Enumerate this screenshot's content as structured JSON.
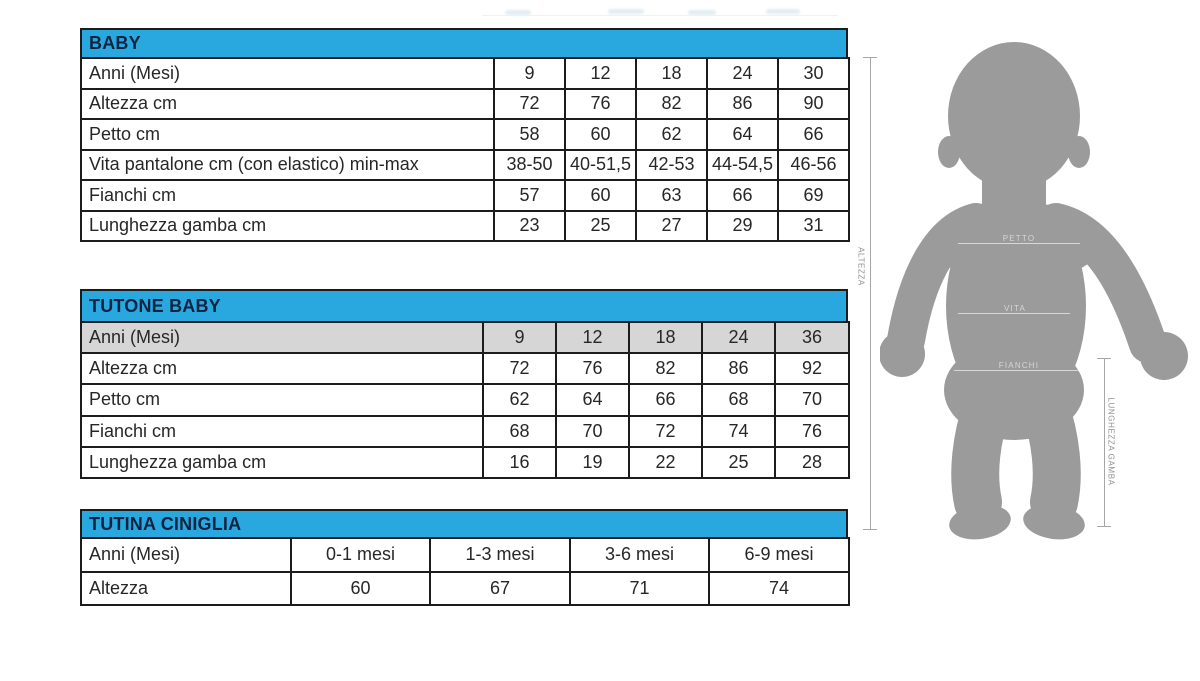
{
  "colors": {
    "header_bg": "#29a8e0",
    "header_text": "#102441",
    "grid_border": "#1c1c1c",
    "shaded_row": "#d6d6d6",
    "cell_text": "#272727",
    "silhouette_gray": "#9b9b9b",
    "dimension_gray": "#a6a6a6"
  },
  "tables": [
    {
      "title": "BABY",
      "rows": [
        {
          "label": "Anni (Mesi)",
          "values": [
            "9",
            "12",
            "18",
            "24",
            "30"
          ]
        },
        {
          "label": "Altezza cm",
          "values": [
            "72",
            "76",
            "82",
            "86",
            "90"
          ]
        },
        {
          "label": "Petto cm",
          "values": [
            "58",
            "60",
            "62",
            "64",
            "66"
          ]
        },
        {
          "label": "Vita pantalone cm (con elastico) min-max",
          "values": [
            "38-50",
            "40-51,5",
            "42-53",
            "44-54,5",
            "46-56"
          ]
        },
        {
          "label": "Fianchi cm",
          "values": [
            "57",
            "60",
            "63",
            "66",
            "69"
          ]
        },
        {
          "label": "Lunghezza gamba cm",
          "values": [
            "23",
            "25",
            "27",
            "29",
            "31"
          ]
        }
      ]
    },
    {
      "title": "TUTONE BABY",
      "rows": [
        {
          "label": "Anni (Mesi)",
          "values": [
            "9",
            "12",
            "18",
            "24",
            "36"
          ],
          "shaded": true
        },
        {
          "label": "Altezza cm",
          "values": [
            "72",
            "76",
            "82",
            "86",
            "92"
          ]
        },
        {
          "label": "Petto cm",
          "values": [
            "62",
            "64",
            "66",
            "68",
            "70"
          ]
        },
        {
          "label": "Fianchi cm",
          "values": [
            "68",
            "70",
            "72",
            "74",
            "76"
          ]
        },
        {
          "label": "Lunghezza gamba cm",
          "values": [
            "16",
            "19",
            "22",
            "25",
            "28"
          ]
        }
      ]
    },
    {
      "title": "TUTINA CINIGLIA",
      "rows": [
        {
          "label": "Anni (Mesi)",
          "values": [
            "0-1 mesi",
            "1-3 mesi",
            "3-6 mesi",
            "6-9 mesi"
          ]
        },
        {
          "label": "Altezza",
          "values": [
            "60",
            "67",
            "71",
            "74"
          ]
        }
      ]
    }
  ],
  "diagram": {
    "altezza_label": "ALTEZZA",
    "lunghezza_gamba_label": "LUNGHEZZA GAMBA",
    "body_measures": [
      "PETTO",
      "VITA",
      "FIANCHI"
    ]
  }
}
